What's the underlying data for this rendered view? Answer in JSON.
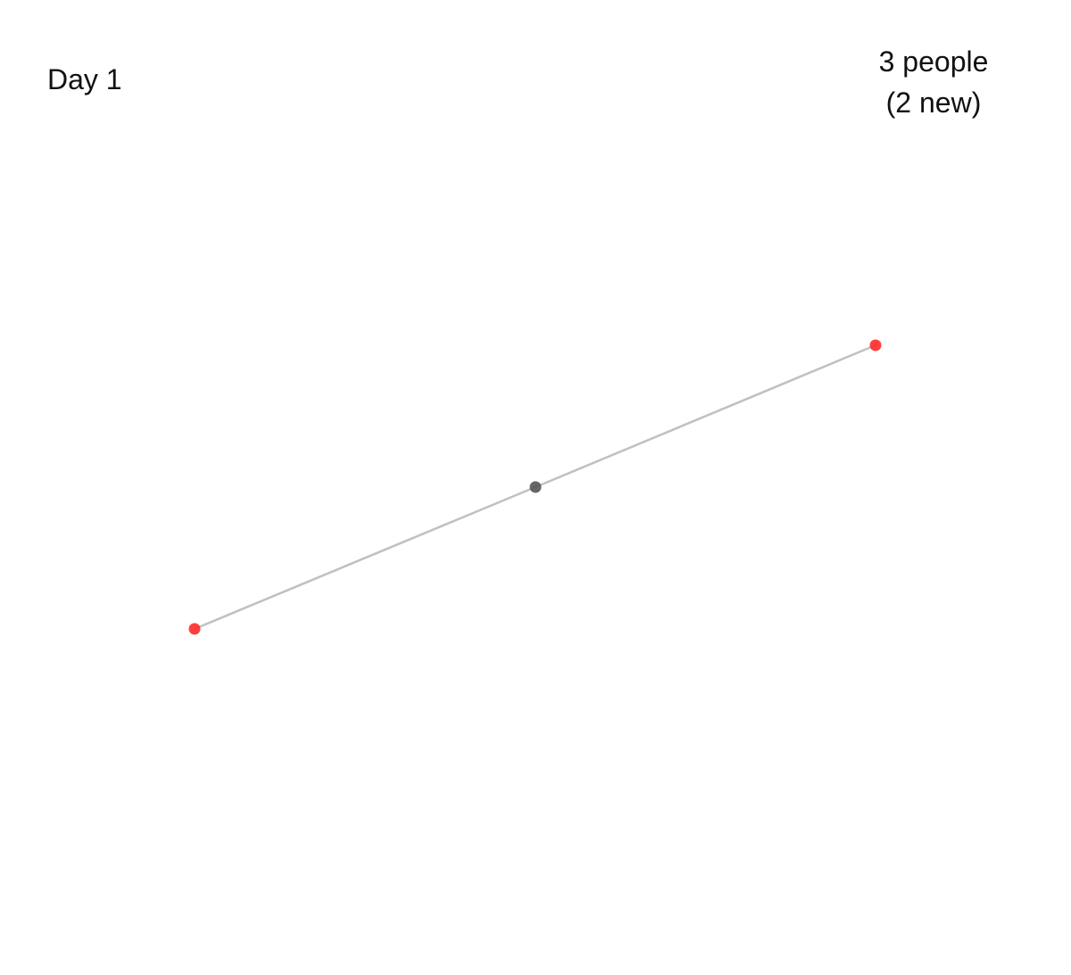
{
  "header": {
    "day_label": "Day 1",
    "people_count": "3 people",
    "new_count": "(2 new)"
  },
  "colors": {
    "edge": "#c0c0c0",
    "node_existing": "#555555",
    "node_new": "#ff2a2a"
  },
  "network": {
    "nodes": [
      {
        "id": "a",
        "status": "new"
      },
      {
        "id": "b",
        "status": "existing"
      },
      {
        "id": "c",
        "status": "new"
      }
    ],
    "edges": [
      {
        "from": "a",
        "to": "b"
      },
      {
        "from": "b",
        "to": "c"
      }
    ]
  }
}
